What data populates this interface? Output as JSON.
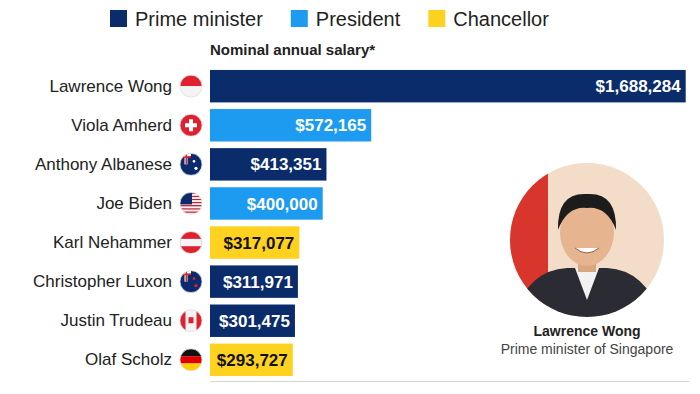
{
  "chart_data": {
    "type": "bar",
    "orientation": "horizontal",
    "title": "Nominal annual salary*",
    "categories": [
      "Lawrence Wong",
      "Viola Amherd",
      "Anthony Albanese",
      "Joe Biden",
      "Karl Nehammer",
      "Christopher Luxon",
      "Justin Trudeau",
      "Olaf Scholz"
    ],
    "series": [
      {
        "name": "Prime minister",
        "color": "#0b2c6b",
        "values": [
          1688284,
          null,
          413351,
          null,
          null,
          311971,
          301475,
          null
        ],
        "value_labels": [
          "$1,688,284",
          null,
          "$413,351",
          null,
          null,
          "$311,971",
          "$301,475",
          null
        ]
      },
      {
        "name": "President",
        "color": "#1d9bf0",
        "values": [
          null,
          572165,
          null,
          400000,
          null,
          null,
          null,
          null
        ],
        "value_labels": [
          null,
          "$572,165",
          null,
          "$400,000",
          null,
          null,
          null,
          null
        ]
      },
      {
        "name": "Chancellor",
        "color": "#ffd21f",
        "values": [
          null,
          null,
          null,
          null,
          317077,
          null,
          null,
          293727
        ],
        "value_labels": [
          null,
          null,
          null,
          null,
          "$317,077",
          null,
          null,
          "$293,727"
        ]
      }
    ],
    "xlim": [
      0,
      1700000
    ],
    "tick_labels": "y",
    "data_labels": true,
    "legend": "top",
    "annotations": [
      "Lawrence Wong",
      "Prime minister of Singapore"
    ]
  }
}
